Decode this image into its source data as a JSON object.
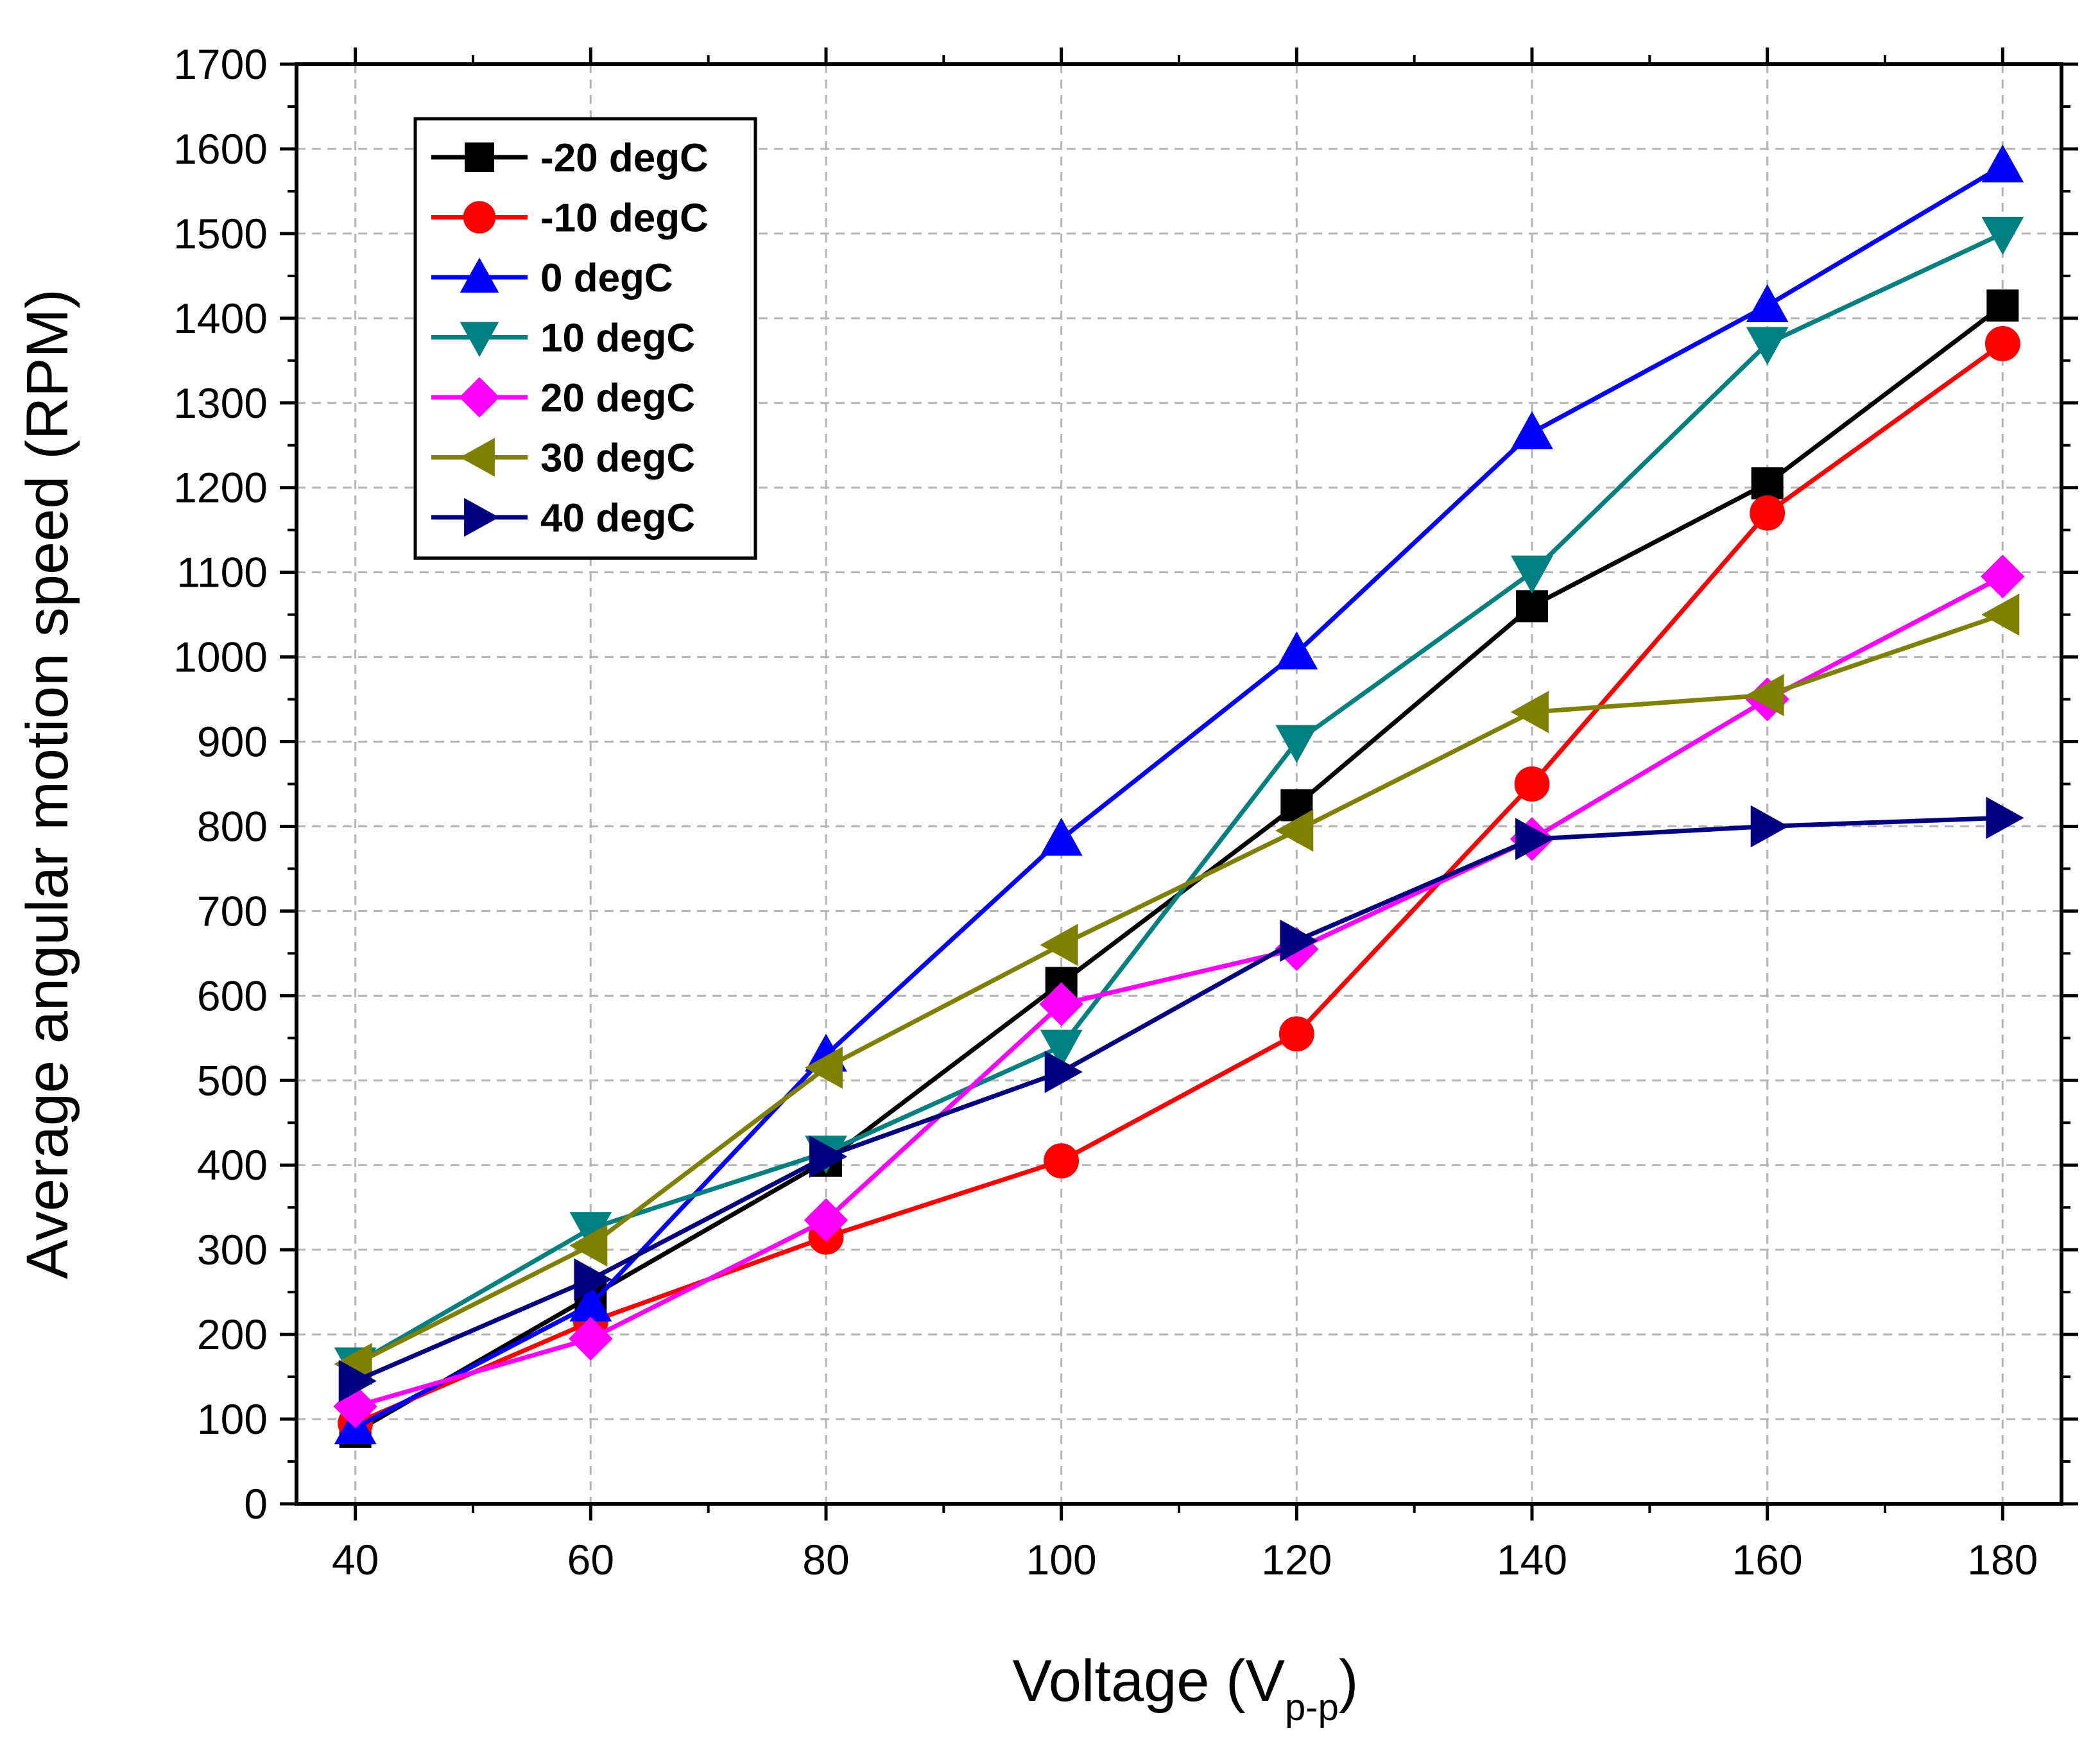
{
  "chart_data": {
    "type": "line",
    "title": "",
    "xlabel": "Voltage (V",
    "xlabel_subscript": "p-p",
    "xlabel_close": ")",
    "ylabel": "Average angular motion speed (RPM)",
    "xlim": [
      35,
      185
    ],
    "ylim": [
      0,
      1700
    ],
    "xticks": [
      40,
      60,
      80,
      100,
      120,
      140,
      160,
      180
    ],
    "yticks": [
      0,
      100,
      200,
      300,
      400,
      500,
      600,
      700,
      800,
      900,
      1000,
      1100,
      1200,
      1300,
      1400,
      1500,
      1600,
      1700
    ],
    "x": [
      40,
      60,
      80,
      100,
      120,
      140,
      160,
      180
    ],
    "grid": true,
    "legend_position": "top-left",
    "series": [
      {
        "name": "-20 degC",
        "color": "#000000",
        "marker": "square",
        "values": [
          85,
          245,
          405,
          615,
          825,
          1060,
          1205,
          1415
        ]
      },
      {
        "name": "-10 degC",
        "color": "#ff0000",
        "marker": "circle",
        "values": [
          95,
          215,
          315,
          405,
          555,
          850,
          1170,
          1370
        ]
      },
      {
        "name": "0 degC",
        "color": "#0000ff",
        "marker": "triangle-up",
        "values": [
          90,
          235,
          530,
          785,
          1005,
          1265,
          1415,
          1580
        ]
      },
      {
        "name": "10 degC",
        "color": "#008080",
        "marker": "triangle-down",
        "values": [
          165,
          325,
          415,
          540,
          900,
          1100,
          1370,
          1500
        ]
      },
      {
        "name": "20 degC",
        "color": "#ff00ff",
        "marker": "diamond",
        "values": [
          115,
          195,
          335,
          590,
          655,
          785,
          950,
          1095
        ]
      },
      {
        "name": "30 degC",
        "color": "#808000",
        "marker": "triangle-left",
        "values": [
          165,
          305,
          515,
          660,
          795,
          935,
          955,
          1050
        ]
      },
      {
        "name": "40 degC",
        "color": "#000080",
        "marker": "triangle-right",
        "values": [
          145,
          265,
          410,
          510,
          665,
          785,
          800,
          810
        ]
      }
    ]
  }
}
